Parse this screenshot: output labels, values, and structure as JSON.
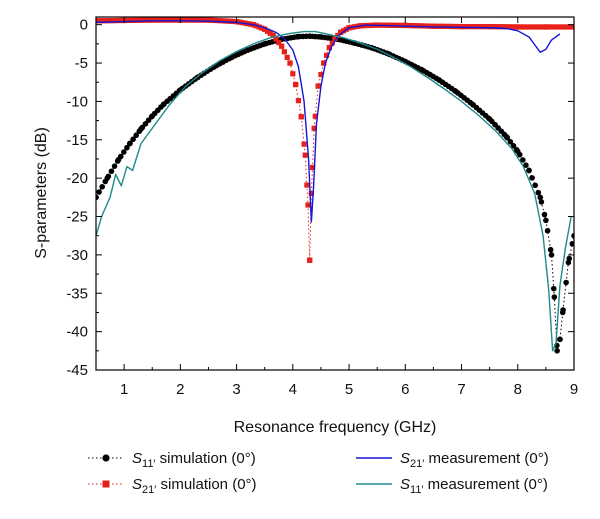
{
  "chart_data": {
    "type": "line",
    "xlabel": "Resonance frequency (GHz)",
    "ylabel": "S-parameters (dB)",
    "xlim": [
      0.5,
      9
    ],
    "ylim": [
      -45,
      1
    ],
    "xticks": [
      1,
      2,
      3,
      4,
      5,
      6,
      7,
      8,
      9
    ],
    "yticks": [
      0,
      -5,
      -10,
      -15,
      -20,
      -25,
      -30,
      -35,
      -40,
      -45
    ],
    "grid": false,
    "legend_position": "bottom",
    "series": [
      {
        "name": "S11′ simulation (0°)",
        "style": "dotted-circle",
        "color": "#000000",
        "x": [
          0.5,
          0.7,
          0.9,
          1.1,
          1.3,
          1.5,
          1.7,
          2.0,
          2.3,
          2.6,
          2.9,
          3.2,
          3.5,
          3.8,
          4.1,
          4.3,
          4.5,
          4.8,
          5.1,
          5.4,
          5.7,
          6.0,
          6.3,
          6.6,
          6.9,
          7.2,
          7.5,
          7.8,
          8.0,
          8.2,
          8.4,
          8.5,
          8.6,
          8.65,
          8.7,
          8.75,
          8.8,
          8.9,
          9.0
        ],
        "y": [
          -22.5,
          -20.0,
          -17.6,
          -15.5,
          -13.6,
          -11.9,
          -10.4,
          -8.5,
          -6.9,
          -5.5,
          -4.3,
          -3.3,
          -2.5,
          -1.9,
          -1.55,
          -1.5,
          -1.6,
          -1.9,
          -2.4,
          -3.0,
          -3.8,
          -4.8,
          -5.9,
          -7.2,
          -8.7,
          -10.4,
          -12.3,
          -14.6,
          -16.5,
          -19.0,
          -22.5,
          -25.5,
          -30.0,
          -35.5,
          -42.5,
          -41.0,
          -37.5,
          -31.0,
          -27.5
        ]
      },
      {
        "name": "S21′ simulation (0°)",
        "style": "dotted-square",
        "color": "#e8201a",
        "x": [
          0.5,
          1.0,
          1.5,
          2.0,
          2.5,
          3.0,
          3.3,
          3.5,
          3.65,
          3.8,
          3.95,
          4.05,
          4.15,
          4.22,
          4.27,
          4.3,
          4.33,
          4.38,
          4.45,
          4.55,
          4.65,
          4.75,
          4.85,
          5.0,
          5.2,
          5.5,
          6.0,
          6.5,
          7.0,
          7.5,
          8.0,
          8.5,
          9.0
        ],
        "y": [
          0.5,
          0.55,
          0.6,
          0.6,
          0.6,
          0.4,
          0.0,
          -0.6,
          -1.4,
          -2.8,
          -5.0,
          -7.8,
          -12.0,
          -17.0,
          -23.5,
          -30.7,
          -22.0,
          -13.5,
          -8.0,
          -5.0,
          -3.0,
          -1.8,
          -1.0,
          -0.4,
          -0.15,
          -0.05,
          -0.1,
          -0.2,
          -0.25,
          -0.25,
          -0.3,
          -0.3,
          -0.3
        ]
      },
      {
        "name": "S21′ measurement (0°)",
        "style": "solid",
        "color": "#1515d6",
        "x": [
          0.5,
          1.0,
          1.5,
          2.0,
          2.5,
          3.0,
          3.3,
          3.5,
          3.7,
          3.85,
          4.0,
          4.1,
          4.2,
          4.28,
          4.33,
          4.37,
          4.42,
          4.5,
          4.58,
          4.68,
          4.8,
          5.0,
          5.3,
          5.6,
          6.0,
          6.5,
          7.0,
          7.5,
          7.8,
          8.0,
          8.2,
          8.3,
          8.4,
          8.5,
          8.6,
          8.75
        ],
        "y": [
          0.3,
          0.4,
          0.5,
          0.5,
          0.45,
          0.3,
          0.0,
          -0.4,
          -1.0,
          -1.8,
          -3.3,
          -5.5,
          -10.0,
          -17.5,
          -25.7,
          -21.0,
          -13.0,
          -8.0,
          -5.0,
          -3.0,
          -1.5,
          -0.4,
          -0.05,
          -0.1,
          -0.2,
          -0.3,
          -0.35,
          -0.4,
          -0.5,
          -0.8,
          -1.6,
          -2.6,
          -3.6,
          -3.2,
          -2.0,
          -1.2
        ]
      },
      {
        "name": "S11′ measurement (0°)",
        "style": "solid",
        "color": "#1f8a8a",
        "x": [
          0.5,
          0.6,
          0.75,
          0.85,
          0.95,
          1.05,
          1.15,
          1.3,
          1.5,
          1.8,
          2.1,
          2.4,
          2.7,
          3.0,
          3.3,
          3.6,
          3.9,
          4.2,
          4.4,
          4.6,
          4.9,
          5.2,
          5.5,
          5.8,
          6.1,
          6.4,
          6.7,
          7.0,
          7.3,
          7.6,
          7.9,
          8.1,
          8.3,
          8.45,
          8.55,
          8.62,
          8.68,
          8.75,
          8.85,
          8.95
        ],
        "y": [
          -27.5,
          -25.0,
          -22.5,
          -19.5,
          -21.0,
          -18.5,
          -19.0,
          -15.5,
          -13.5,
          -10.5,
          -8.0,
          -6.2,
          -4.7,
          -3.5,
          -2.5,
          -1.7,
          -1.2,
          -0.9,
          -0.9,
          -1.2,
          -1.7,
          -2.4,
          -3.2,
          -4.3,
          -5.5,
          -6.9,
          -8.4,
          -10.0,
          -11.8,
          -13.8,
          -16.2,
          -18.5,
          -22.0,
          -27.5,
          -34.5,
          -42.5,
          -41.5,
          -34.0,
          -29.0,
          -25.0
        ]
      }
    ],
    "legend": [
      {
        "series": 0,
        "sym": "S",
        "sub": "11′",
        "text": " simulation (0°)"
      },
      {
        "series": 1,
        "sym": "S",
        "sub": "21′",
        "text": " simulation (0°)"
      },
      {
        "series": 2,
        "sym": "S",
        "sub": "21′",
        "text": " measurement (0°)"
      },
      {
        "series": 3,
        "sym": "S",
        "sub": "11′",
        "text": " measurement (0°)"
      }
    ]
  }
}
